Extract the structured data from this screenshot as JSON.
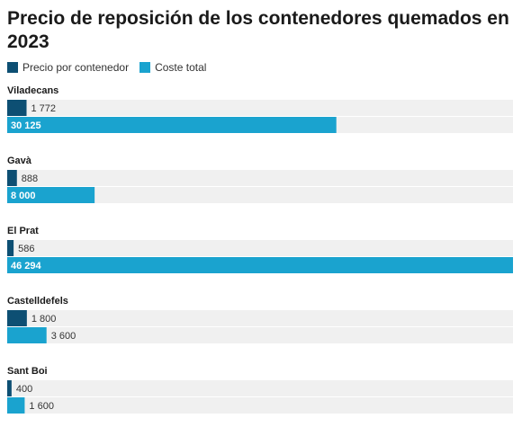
{
  "colors": {
    "precio": "#0d4f73",
    "coste": "#1aa3cf",
    "track": "#f0f0f0"
  },
  "chart_data": {
    "type": "bar",
    "orientation": "horizontal",
    "title": "Precio de reposición de los contenedores quemados en 2023",
    "categories": [
      "Viladecans",
      "Gavà",
      "El Prat",
      "Castelldefels",
      "Sant Boi"
    ],
    "series": [
      {
        "name": "Precio por contenedor",
        "values": [
          1772,
          888,
          586,
          1800,
          400
        ],
        "labels": [
          "1 772",
          "888",
          "586",
          "1 800",
          "400"
        ]
      },
      {
        "name": "Coste total",
        "values": [
          30125,
          8000,
          46294,
          3600,
          1600
        ],
        "labels": [
          "30 125",
          "8 000",
          "46 294",
          "3 600",
          "1 600"
        ]
      }
    ],
    "xlim": [
      0,
      46294
    ],
    "legend": "top-left",
    "grid": false
  }
}
